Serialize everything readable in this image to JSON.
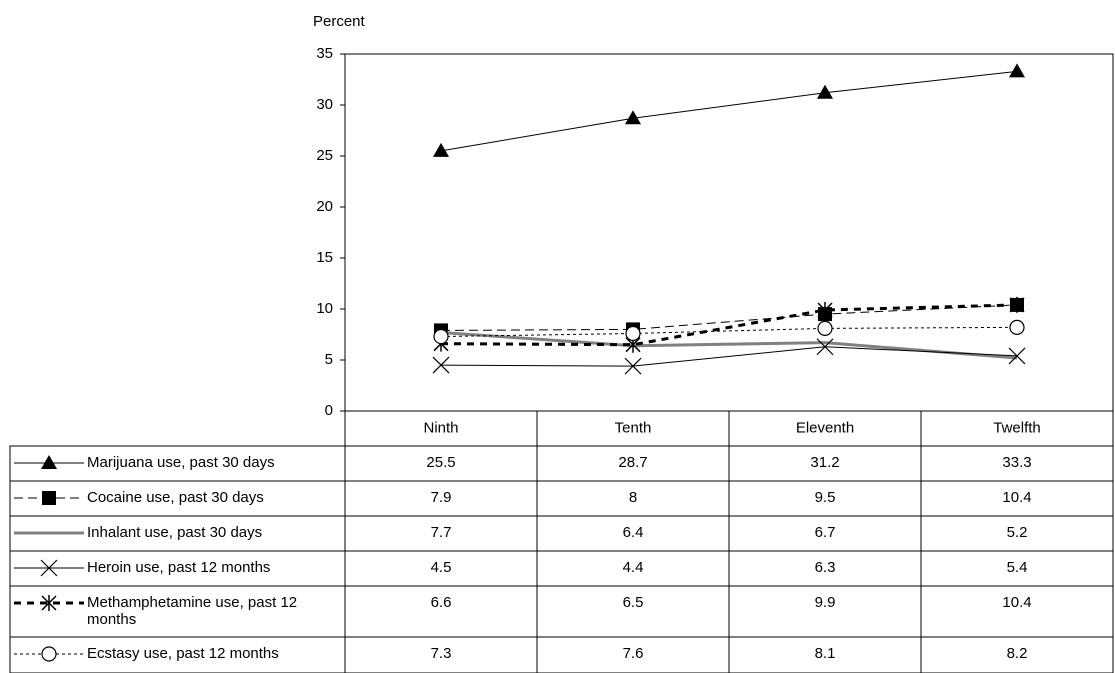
{
  "chart_data": {
    "type": "line",
    "y_label": "Percent",
    "categories": [
      "Ninth",
      "Tenth",
      "Eleventh",
      "Twelfth"
    ],
    "ylim": [
      0,
      35
    ],
    "yticks": [
      0,
      5,
      10,
      15,
      20,
      25,
      30,
      35
    ],
    "series": [
      {
        "name": "Marijuana use, past 30 days",
        "color": "#000000",
        "dash": "solid",
        "width": 1,
        "marker": "triangle",
        "values": [
          25.5,
          28.7,
          31.2,
          33.3
        ]
      },
      {
        "name": "Cocaine use, past 30 days",
        "color": "#000000",
        "dash": "dashed",
        "width": 1,
        "marker": "square",
        "values": [
          7.9,
          8,
          9.5,
          10.4
        ]
      },
      {
        "name": "Inhalant use, past 30 days",
        "color": "#808080",
        "dash": "solid",
        "width": 3,
        "marker": "none",
        "values": [
          7.7,
          6.4,
          6.7,
          5.2
        ]
      },
      {
        "name": "Heroin use, past 12 months",
        "color": "#000000",
        "dash": "solid",
        "width": 1,
        "marker": "x",
        "values": [
          4.5,
          4.4,
          6.3,
          5.4
        ]
      },
      {
        "name": "Methamphetamine use, past 12 months",
        "color": "#000000",
        "dash": "bold-dashed",
        "width": 3,
        "marker": "asterisk",
        "values": [
          6.6,
          6.5,
          9.9,
          10.4
        ]
      },
      {
        "name": "Ecstasy use, past 12 months",
        "color": "#000000",
        "dash": "dotted",
        "width": 1,
        "marker": "circle",
        "values": [
          7.3,
          7.6,
          8.1,
          8.2
        ]
      }
    ]
  }
}
